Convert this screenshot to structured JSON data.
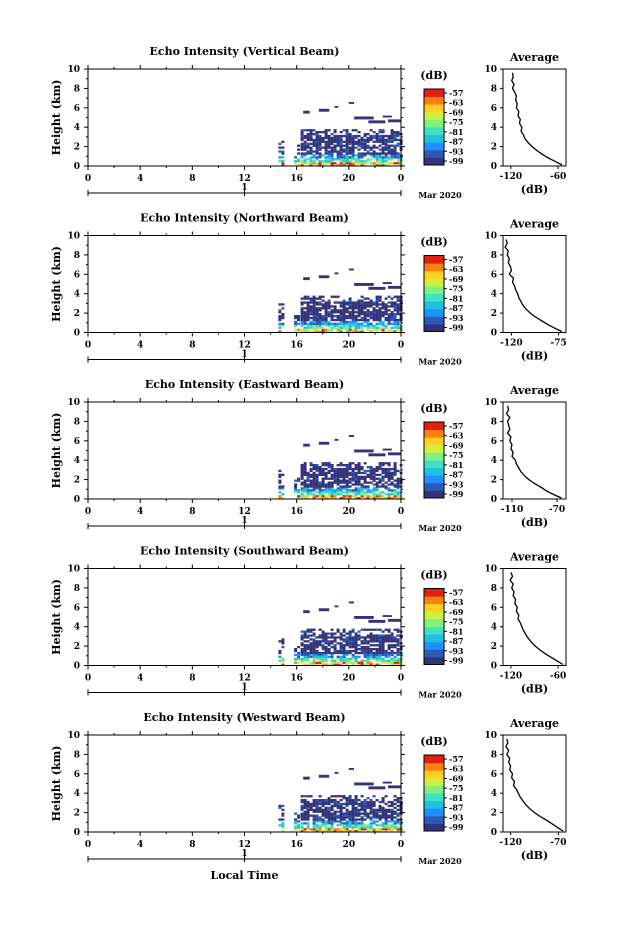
{
  "panels": [
    {
      "title": "Echo Intensity (Vertical Beam)",
      "avg_xticks": [
        "-120",
        "-60"
      ],
      "avg_xlim": [
        -130,
        -50
      ],
      "avg_profile": [
        [
          -118,
          9.6
        ],
        [
          -117,
          9.2
        ],
        [
          -119,
          8.8
        ],
        [
          -116,
          8.4
        ],
        [
          -118,
          8.0
        ],
        [
          -115,
          7.6
        ],
        [
          -113,
          7.2
        ],
        [
          -114,
          6.8
        ],
        [
          -112,
          6.4
        ],
        [
          -113,
          6.0
        ],
        [
          -110,
          5.6
        ],
        [
          -111,
          5.2
        ],
        [
          -108,
          4.8
        ],
        [
          -109,
          4.4
        ],
        [
          -106,
          4.0
        ],
        [
          -107,
          3.6
        ],
        [
          -104,
          3.2
        ],
        [
          -102,
          2.8
        ],
        [
          -98,
          2.4
        ],
        [
          -93,
          2.0
        ],
        [
          -87,
          1.6
        ],
        [
          -80,
          1.2
        ],
        [
          -72,
          0.8
        ],
        [
          -62,
          0.4
        ],
        [
          -55,
          0.1
        ]
      ]
    },
    {
      "title": "Echo Intensity (Northward Beam)",
      "avg_xticks": [
        "-120",
        "-75"
      ],
      "avg_xlim": [
        -128,
        -68
      ],
      "avg_profile": [
        [
          -125,
          9.6
        ],
        [
          -124,
          9.2
        ],
        [
          -126,
          8.8
        ],
        [
          -123,
          8.4
        ],
        [
          -124,
          8.0
        ],
        [
          -122,
          7.6
        ],
        [
          -123,
          7.2
        ],
        [
          -121,
          6.8
        ],
        [
          -120,
          6.4
        ],
        [
          -122,
          6.0
        ],
        [
          -118,
          5.6
        ],
        [
          -119,
          5.2
        ],
        [
          -117,
          4.8
        ],
        [
          -116,
          4.4
        ],
        [
          -114,
          4.0
        ],
        [
          -113,
          3.6
        ],
        [
          -111,
          3.2
        ],
        [
          -109,
          2.8
        ],
        [
          -106,
          2.4
        ],
        [
          -102,
          2.0
        ],
        [
          -97,
          1.6
        ],
        [
          -91,
          1.2
        ],
        [
          -85,
          0.8
        ],
        [
          -78,
          0.4
        ],
        [
          -72,
          0.1
        ]
      ]
    },
    {
      "title": "Echo Intensity (Eastward Beam)",
      "avg_xticks": [
        "-110",
        "-70"
      ],
      "avg_xlim": [
        -118,
        -62
      ],
      "avg_profile": [
        [
          -114,
          9.6
        ],
        [
          -113,
          9.2
        ],
        [
          -115,
          8.8
        ],
        [
          -112,
          8.4
        ],
        [
          -114,
          8.0
        ],
        [
          -113,
          7.6
        ],
        [
          -112,
          7.2
        ],
        [
          -114,
          6.8
        ],
        [
          -111,
          6.4
        ],
        [
          -112,
          6.0
        ],
        [
          -110,
          5.6
        ],
        [
          -111,
          5.2
        ],
        [
          -109,
          4.8
        ],
        [
          -110,
          4.4
        ],
        [
          -107,
          4.0
        ],
        [
          -106,
          3.6
        ],
        [
          -104,
          3.2
        ],
        [
          -102,
          2.8
        ],
        [
          -99,
          2.4
        ],
        [
          -95,
          2.0
        ],
        [
          -90,
          1.6
        ],
        [
          -84,
          1.2
        ],
        [
          -79,
          0.8
        ],
        [
          -72,
          0.4
        ],
        [
          -66,
          0.1
        ]
      ]
    },
    {
      "title": "Echo Intensity (Southward Beam)",
      "avg_xticks": [
        "-120",
        "-60"
      ],
      "avg_xlim": [
        -130,
        -50
      ],
      "avg_profile": [
        [
          -120,
          9.6
        ],
        [
          -118,
          9.2
        ],
        [
          -121,
          8.8
        ],
        [
          -117,
          8.4
        ],
        [
          -119,
          8.0
        ],
        [
          -116,
          7.6
        ],
        [
          -117,
          7.2
        ],
        [
          -114,
          6.8
        ],
        [
          -115,
          6.4
        ],
        [
          -112,
          6.0
        ],
        [
          -113,
          5.6
        ],
        [
          -110,
          5.2
        ],
        [
          -111,
          4.8
        ],
        [
          -108,
          4.4
        ],
        [
          -106,
          4.0
        ],
        [
          -104,
          3.6
        ],
        [
          -101,
          3.2
        ],
        [
          -98,
          2.8
        ],
        [
          -94,
          2.4
        ],
        [
          -89,
          2.0
        ],
        [
          -83,
          1.6
        ],
        [
          -76,
          1.2
        ],
        [
          -68,
          0.8
        ],
        [
          -60,
          0.4
        ],
        [
          -54,
          0.1
        ]
      ]
    },
    {
      "title": "Echo Intensity (Westward Beam)",
      "avg_xticks": [
        "-120",
        "-70"
      ],
      "avg_xlim": [
        -128,
        -62
      ],
      "avg_profile": [
        [
          -124,
          9.6
        ],
        [
          -123,
          9.2
        ],
        [
          -125,
          8.8
        ],
        [
          -122,
          8.4
        ],
        [
          -124,
          8.0
        ],
        [
          -121,
          7.6
        ],
        [
          -122,
          7.2
        ],
        [
          -120,
          6.8
        ],
        [
          -121,
          6.4
        ],
        [
          -118,
          6.0
        ],
        [
          -119,
          5.6
        ],
        [
          -116,
          5.2
        ],
        [
          -117,
          4.8
        ],
        [
          -114,
          4.4
        ],
        [
          -112,
          4.0
        ],
        [
          -110,
          3.6
        ],
        [
          -107,
          3.2
        ],
        [
          -104,
          2.8
        ],
        [
          -100,
          2.4
        ],
        [
          -95,
          2.0
        ],
        [
          -89,
          1.6
        ],
        [
          -82,
          1.2
        ],
        [
          -76,
          0.8
        ],
        [
          -70,
          0.4
        ],
        [
          -65,
          0.1
        ]
      ]
    }
  ],
  "common": {
    "ylabel": "Height (km)",
    "yticks": [
      "0",
      "2",
      "4",
      "6",
      "8",
      "10"
    ],
    "xticks": [
      "0",
      "4",
      "8",
      "12",
      "16",
      "20",
      "0"
    ],
    "date_marker": "1",
    "date_label": "Mar 2020",
    "colorbar_unit": "(dB)",
    "colorbar_ticks": [
      "-57",
      "-63",
      "-69",
      "-75",
      "-81",
      "-87",
      "-93",
      "-99"
    ],
    "avg_title": "Average",
    "avg_xlabel": "(dB)",
    "footer_xlabel": "Local Time"
  },
  "colors": {
    "colormap": [
      "#33337a",
      "#2d5ab4",
      "#1e90ff",
      "#20c0e0",
      "#40e0c0",
      "#80f080",
      "#d0f040",
      "#ffd020",
      "#ff8010",
      "#e02010"
    ]
  },
  "chart_data": {
    "type": "heatmap",
    "x_range_hours": [
      0,
      24
    ],
    "y_range_km": [
      0,
      10
    ],
    "value_units": "dB",
    "color_range": [
      -99,
      -57
    ],
    "note_series": "five beams sharing axes; echo present from ~14 h to 24 h",
    "echo_regions_hours": [
      {
        "start": 14.6,
        "end": 15.0,
        "ztop": 3.0
      },
      {
        "start": 15.8,
        "end": 16.2,
        "ztop": 2.0
      },
      {
        "start": 16.3,
        "end": 24.0,
        "ztop": 4.0
      }
    ]
  }
}
